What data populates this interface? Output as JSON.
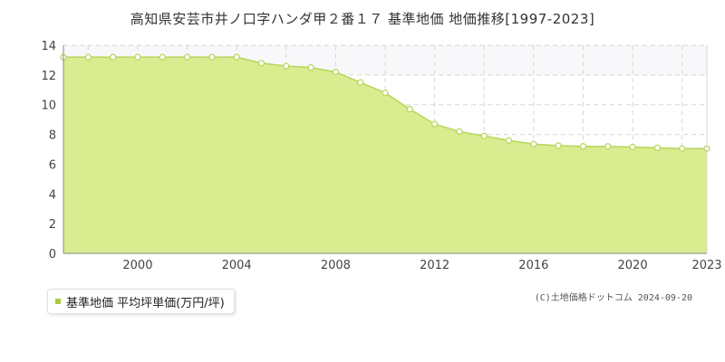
{
  "chart_data": {
    "type": "area",
    "title": "高知県安芸市井ノ口字ハンダ甲２番１７ 基準地価 地価推移[1997-2023]",
    "x": [
      1997,
      1998,
      1999,
      2000,
      2001,
      2002,
      2003,
      2004,
      2005,
      2006,
      2007,
      2008,
      2009,
      2010,
      2011,
      2012,
      2013,
      2014,
      2015,
      2016,
      2017,
      2018,
      2019,
      2020,
      2021,
      2022,
      2023
    ],
    "series": [
      {
        "name": "基準地価 平均坪単価(万円/坪)",
        "values": [
          13.2,
          13.2,
          13.2,
          13.2,
          13.2,
          13.2,
          13.2,
          13.2,
          12.8,
          12.6,
          12.5,
          12.2,
          11.5,
          10.8,
          9.7,
          8.7,
          8.2,
          7.9,
          7.6,
          7.35,
          7.25,
          7.2,
          7.2,
          7.15,
          7.1,
          7.05,
          7.05
        ]
      }
    ],
    "xlim": [
      1997,
      2023
    ],
    "ylim": [
      0,
      14
    ],
    "yticks": [
      "0",
      "2",
      "4",
      "6",
      "8",
      "10",
      "12",
      "14"
    ],
    "xticks": [
      "2000",
      "2004",
      "2008",
      "2012",
      "2016",
      "2020",
      "2023"
    ],
    "grid": true,
    "legend_position": "bottom-left",
    "colors": {
      "fill": "#d9ec90",
      "line": "#b6d65a",
      "marker_fill": "#ffffff",
      "grid": "#d8d8d8",
      "upper_band": "#f8f8fa",
      "legend_marker": "#a8cc3c"
    }
  },
  "credit": "(C)土地価格ドットコム 2024-09-20"
}
